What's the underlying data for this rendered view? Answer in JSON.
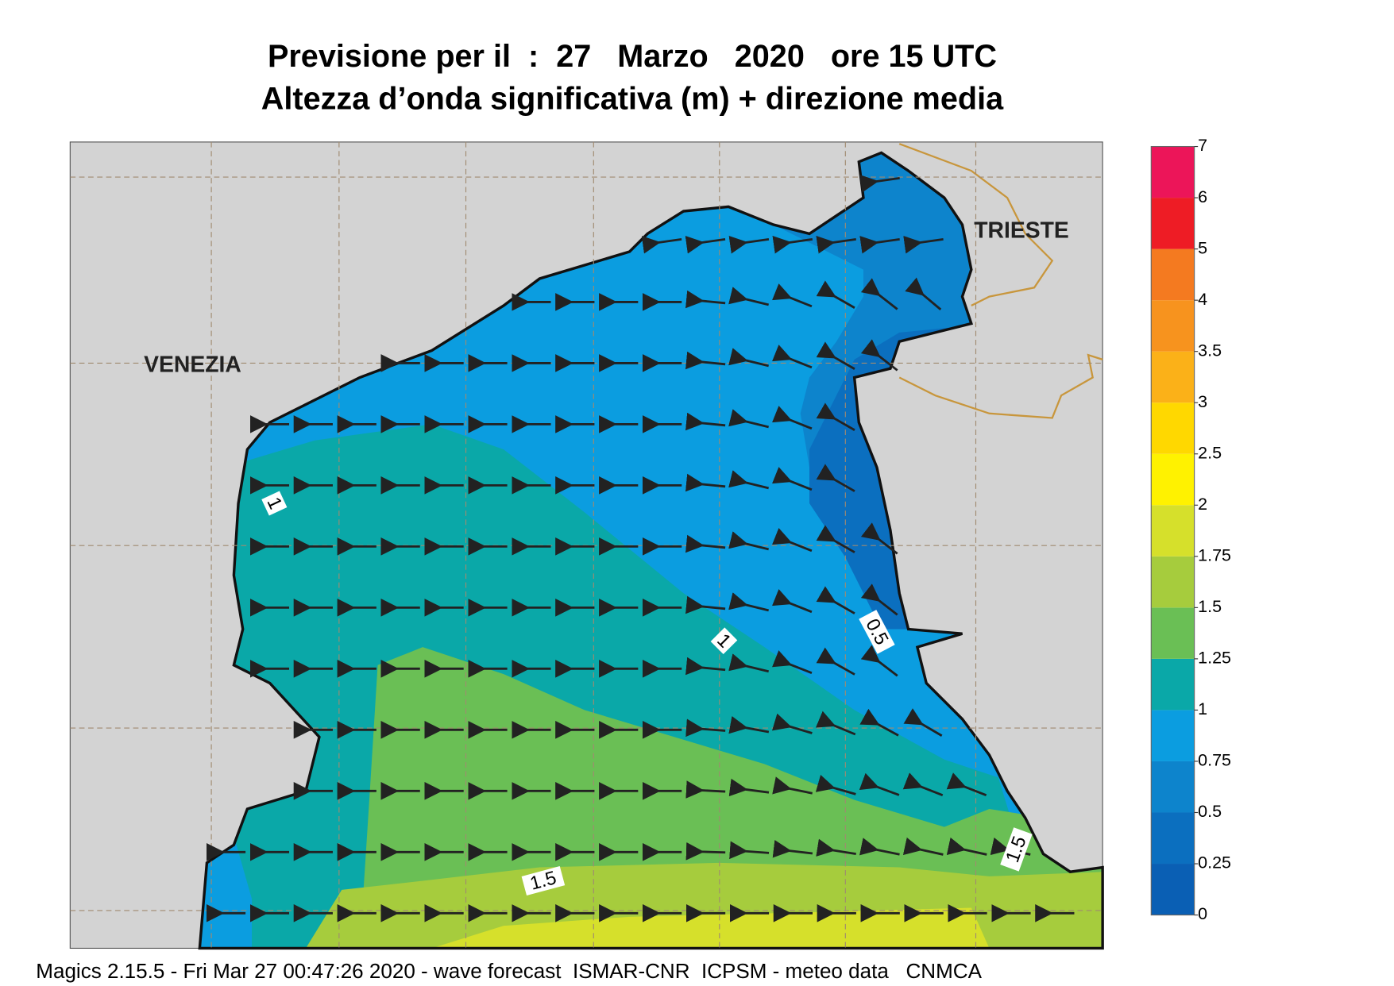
{
  "header": {
    "title": "Previsione per il  :  27   Marzo   2020   ore 15 UTC",
    "subtitle": "Altezza d’onda significativa (m) + direzione media"
  },
  "map": {
    "place_labels": [
      "VENEZIA",
      "TRIESTE"
    ],
    "contour_labels": [
      "1",
      "1",
      "0.5",
      "1.5",
      "1.5"
    ]
  },
  "colorbar": {
    "ticks": [
      0,
      0.25,
      0.5,
      0.75,
      1,
      1.25,
      1.5,
      1.75,
      2,
      2.5,
      3,
      3.5,
      4,
      5,
      6,
      7
    ],
    "colors": [
      "#0a5fb4",
      "#0b6fbf",
      "#0d84cc",
      "#0b9de0",
      "#0aa8a8",
      "#6abf55",
      "#a6cc3d",
      "#d6e02b",
      "#fff200",
      "#ffd800",
      "#fbb118",
      "#f7931e",
      "#f47a20",
      "#ee1c25",
      "#ec1559"
    ]
  },
  "footer": "Magics 2.15.5 - Fri Mar 27 00:47:26 2020 - wave forecast  ISMAR-CNR  ICPSM - meteo data   CNMCA"
}
